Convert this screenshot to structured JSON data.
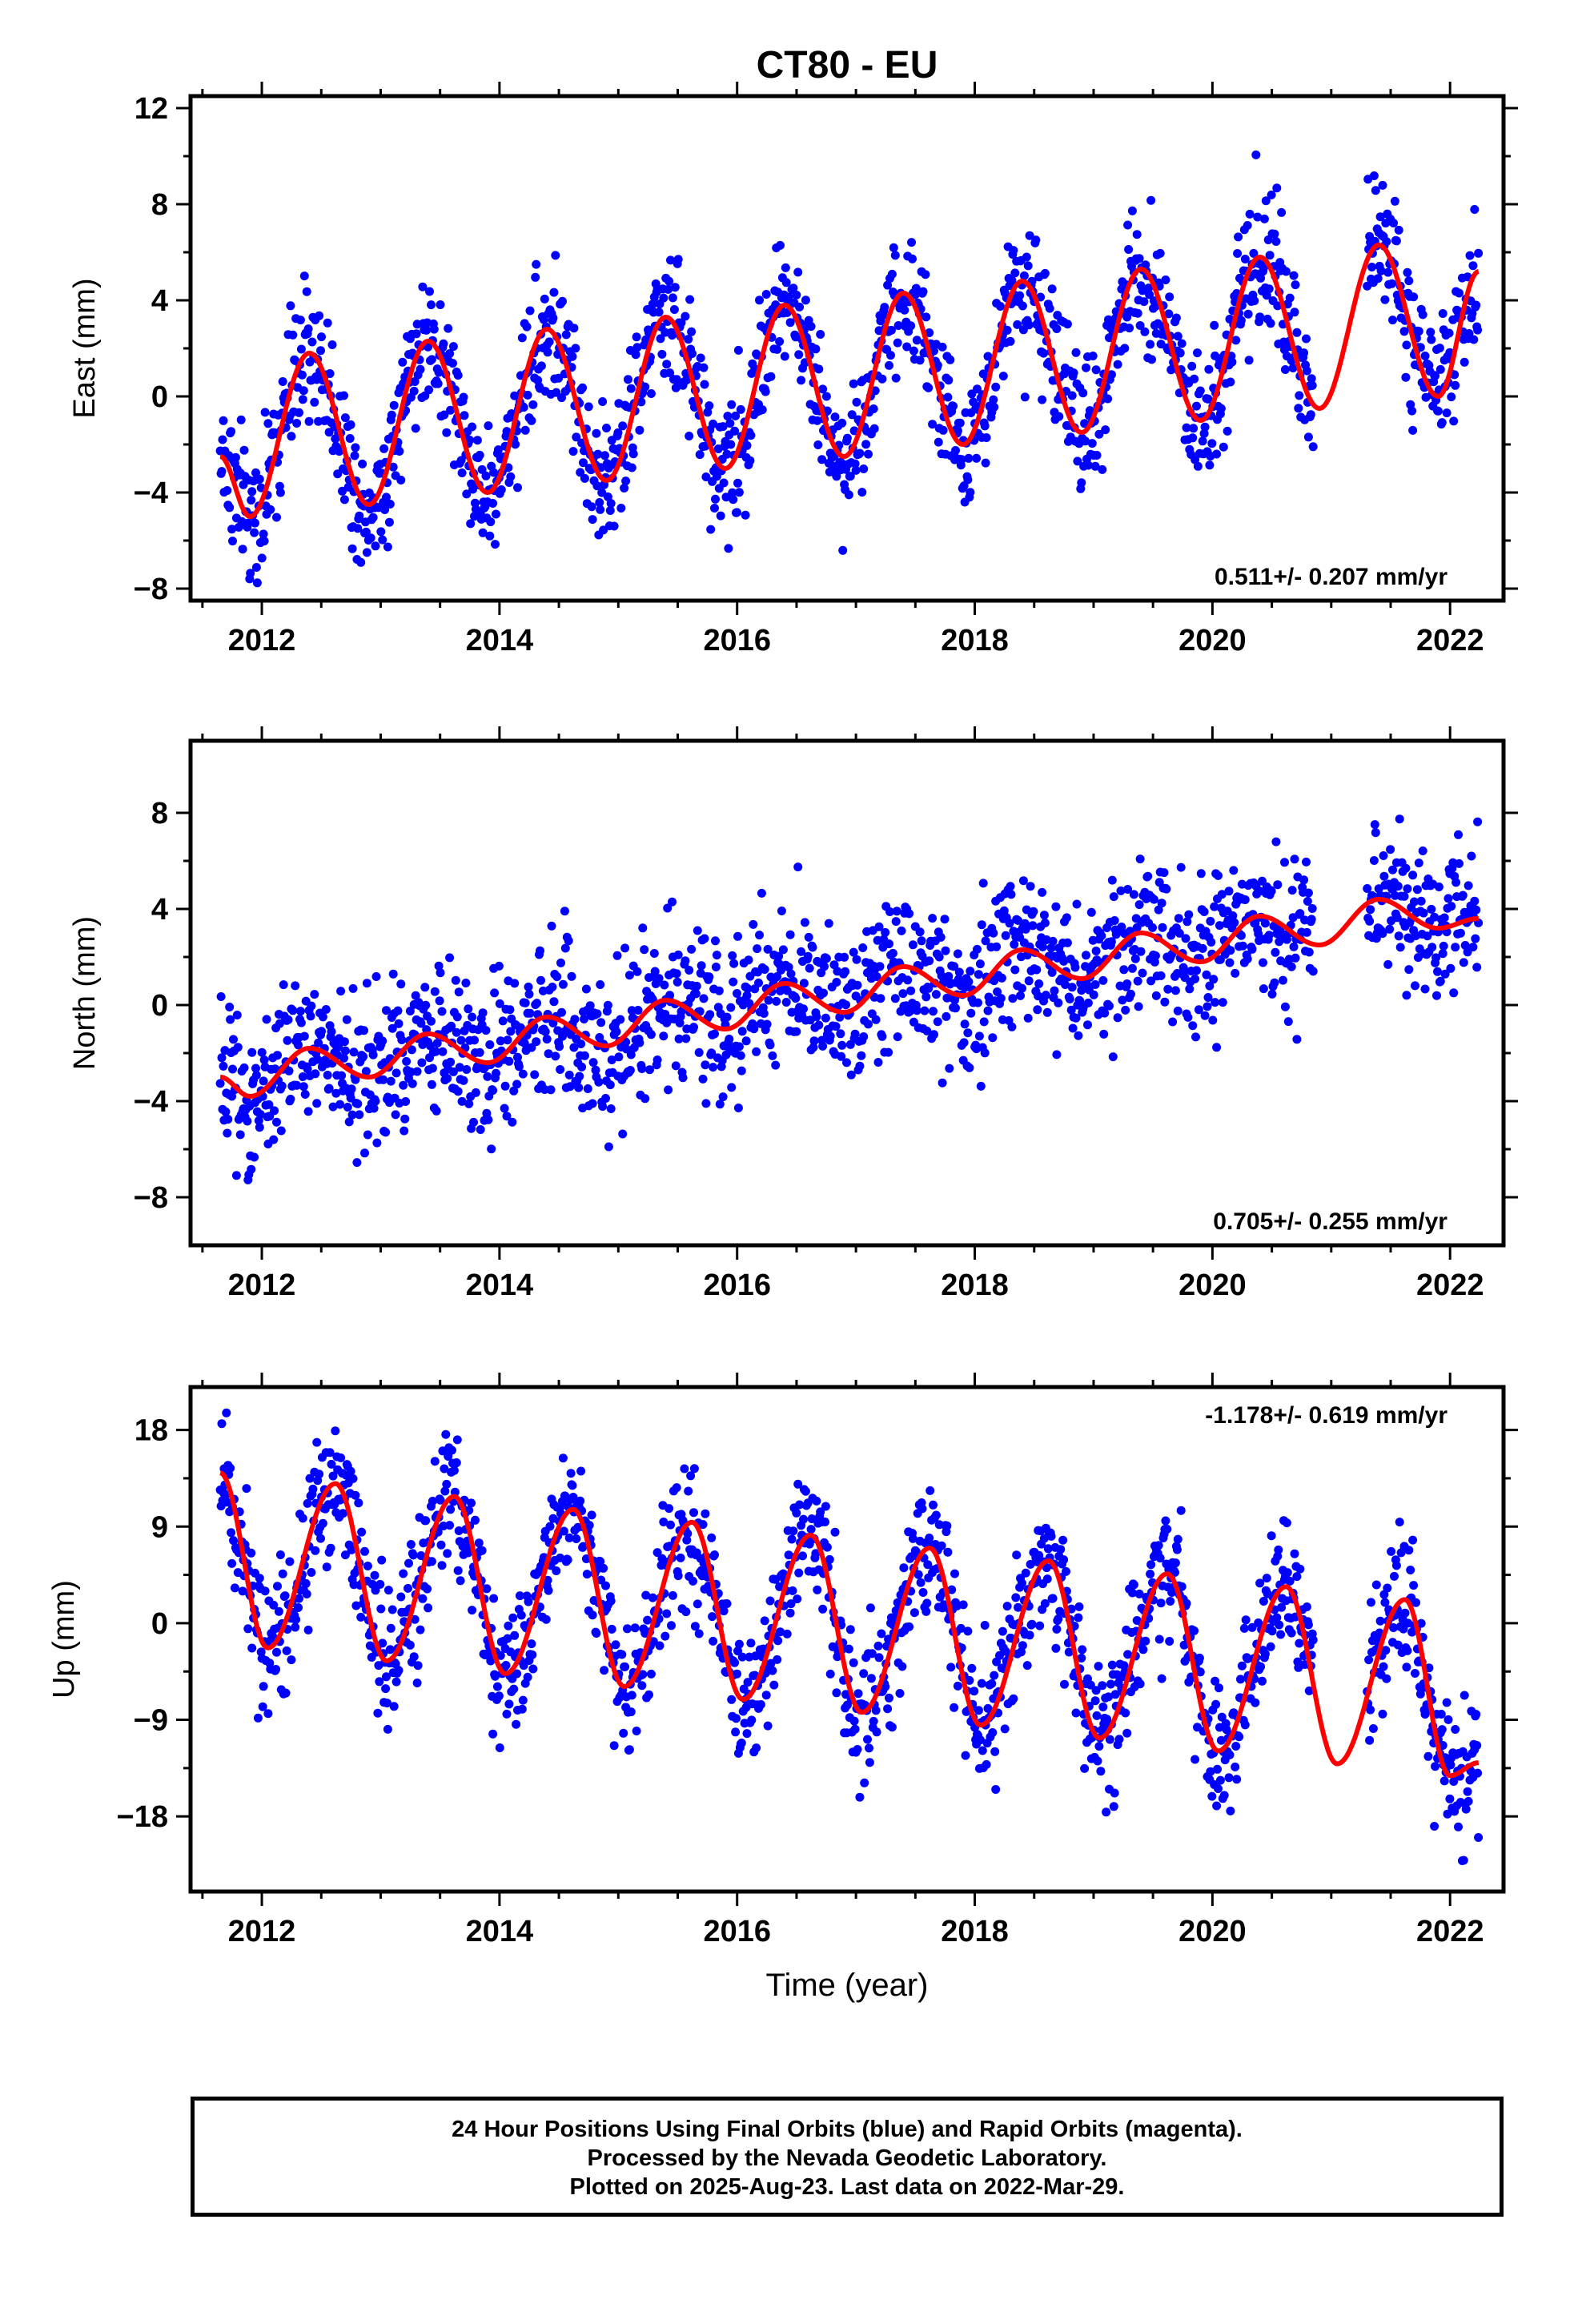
{
  "title": "CT80 - EU",
  "colors": {
    "data": "#0000ff",
    "model": "#ff0000",
    "axis": "#000000"
  },
  "xlabel": "Time (year)",
  "x_ticks": [
    "2012",
    "2014",
    "2016",
    "2018",
    "2020",
    "2022"
  ],
  "footer": {
    "line1": "24 Hour Positions Using Final Orbits (blue) and Rapid Orbits (magenta).",
    "line2": "Processed by the Nevada Geodetic Laboratory.",
    "line3": "Plotted on 2025-Aug-23. Last data on 2022-Mar-29."
  },
  "chart_data": [
    {
      "type": "scatter",
      "panel": "east",
      "ylabel": "East (mm)",
      "y_ticks": [
        "12",
        "8",
        "4",
        "0",
        "−4",
        "−8"
      ],
      "ylim": [
        -8.5,
        12.5
      ],
      "xlim": [
        2011.4,
        2022.45
      ],
      "rate_label": "0.511+/- 0.207 mm/yr",
      "rate_position": "bottom-right",
      "series": [
        {
          "kind": "points",
          "color": "#0000ff",
          "generated_from": "model",
          "scatter_sd": 1.4,
          "x_range": [
            2011.65,
            2022.24
          ]
        },
        {
          "kind": "model_line",
          "color": "#ff0000",
          "x": [
            2011.65,
            2011.9,
            2012.4,
            2012.9,
            2013.4,
            2013.9,
            2014.4,
            2014.9,
            2015.4,
            2015.9,
            2016.4,
            2016.9,
            2017.4,
            2017.9,
            2018.4,
            2018.9,
            2019.4,
            2019.9,
            2020.4,
            2020.9,
            2021.4,
            2021.9,
            2022.24
          ],
          "y": [
            -2.5,
            -5.0,
            1.8,
            -4.5,
            2.3,
            -4.0,
            2.8,
            -3.5,
            3.3,
            -3.0,
            3.8,
            -2.5,
            4.3,
            -2.0,
            4.8,
            -1.5,
            5.3,
            -1.0,
            5.8,
            -0.5,
            6.3,
            0.0,
            5.2
          ]
        }
      ]
    },
    {
      "type": "scatter",
      "panel": "north",
      "ylabel": "North (mm)",
      "y_ticks": [
        "8",
        "4",
        "0",
        "−4",
        "−8"
      ],
      "ylim": [
        -10.0,
        11.0
      ],
      "xlim": [
        2011.4,
        2022.45
      ],
      "rate_label": "0.705+/- 0.255 mm/yr",
      "rate_position": "bottom-right",
      "series": [
        {
          "kind": "points",
          "color": "#0000ff",
          "generated_from": "model",
          "scatter_sd": 1.6,
          "x_range": [
            2011.65,
            2022.24
          ]
        },
        {
          "kind": "model_line",
          "color": "#ff0000",
          "x": [
            2011.65,
            2011.9,
            2012.4,
            2012.9,
            2013.4,
            2013.9,
            2014.4,
            2014.9,
            2015.4,
            2015.9,
            2016.4,
            2016.9,
            2017.4,
            2017.9,
            2018.4,
            2018.9,
            2019.4,
            2019.9,
            2020.4,
            2020.9,
            2021.4,
            2021.9,
            2022.24
          ],
          "y": [
            -3.0,
            -3.8,
            -1.8,
            -3.0,
            -1.2,
            -2.4,
            -0.5,
            -1.7,
            0.2,
            -1.0,
            0.9,
            -0.3,
            1.6,
            0.4,
            2.3,
            1.1,
            3.0,
            1.8,
            3.7,
            2.5,
            4.4,
            3.2,
            3.6
          ]
        }
      ]
    },
    {
      "type": "scatter",
      "panel": "up",
      "ylabel": "Up (mm)",
      "y_ticks": [
        "18",
        "9",
        "0",
        "−9",
        "−18"
      ],
      "ylim": [
        -25.0,
        22.0
      ],
      "xlim": [
        2011.4,
        2022.45
      ],
      "rate_label": "-1.178+/- 0.619 mm/yr",
      "rate_position": "top-right",
      "series": [
        {
          "kind": "points",
          "color": "#0000ff",
          "generated_from": "model",
          "scatter_sd": 3.2,
          "x_range": [
            2011.65,
            2022.24
          ]
        },
        {
          "kind": "model_line",
          "color": "#ff0000",
          "x": [
            2011.65,
            2012.05,
            2012.62,
            2013.05,
            2013.62,
            2014.05,
            2014.62,
            2015.05,
            2015.62,
            2016.05,
            2016.62,
            2017.05,
            2017.62,
            2018.05,
            2018.62,
            2019.05,
            2019.62,
            2020.05,
            2020.62,
            2021.05,
            2021.62,
            2022.0,
            2022.24
          ],
          "y": [
            14.0,
            -2.3,
            13.0,
            -3.5,
            11.8,
            -4.7,
            10.6,
            -5.9,
            9.4,
            -7.1,
            8.2,
            -8.3,
            7.0,
            -9.5,
            5.8,
            -10.7,
            4.6,
            -11.9,
            3.4,
            -13.1,
            2.2,
            -14.2,
            -13.0
          ]
        }
      ]
    }
  ]
}
